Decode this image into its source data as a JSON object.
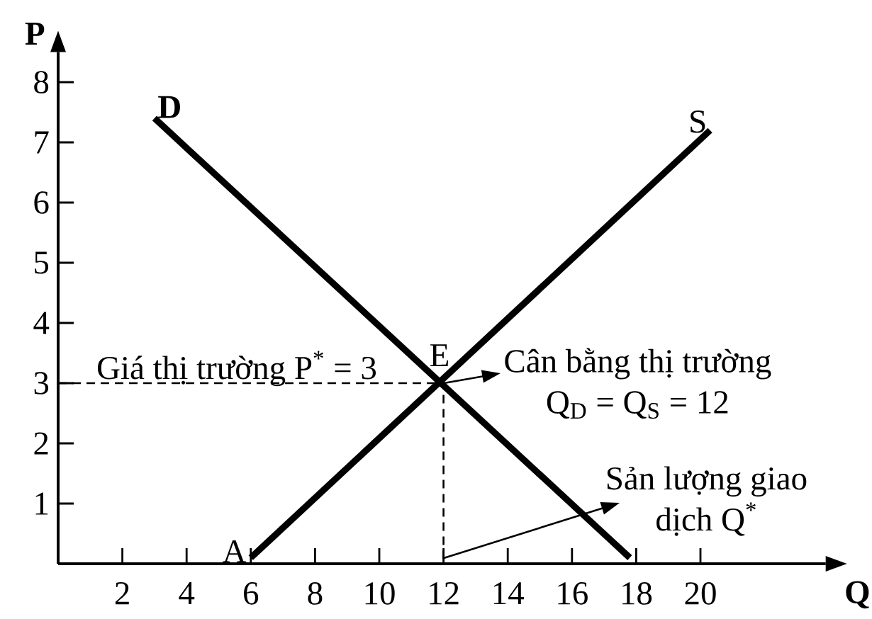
{
  "chart_data": {
    "type": "line",
    "xlabel": "Q",
    "ylabel": "P",
    "series": [
      {
        "name": "D",
        "color": "#000000",
        "x": [
          3,
          17.8
        ],
        "values": [
          7.4,
          0.1
        ]
      },
      {
        "name": "S",
        "color": "#000000",
        "x": [
          6,
          20.3
        ],
        "values": [
          0.1,
          7.2
        ]
      },
      {
        "color": "#000000",
        "x": [
          0,
          12,
          12
        ],
        "values": [
          3,
          3,
          0
        ],
        "line_style": "dashed"
      }
    ],
    "xlim": [
      0,
      23.9
    ],
    "ylim": [
      0,
      8.5
    ],
    "xticks": [
      2,
      4,
      6,
      8,
      10,
      12,
      14,
      16,
      18,
      20
    ],
    "yticks": [
      1,
      2,
      3,
      4,
      5,
      6,
      7,
      8
    ],
    "line_style": "solid",
    "annotations": [
      "Giá thị trường P$^{*}$ = 3",
      "E",
      "A",
      "Cân bằng thị trường Q$_{D}$ = Q$_{S}$ = 12",
      "Sản lượng giao dịch Q$^{*}$"
    ]
  }
}
